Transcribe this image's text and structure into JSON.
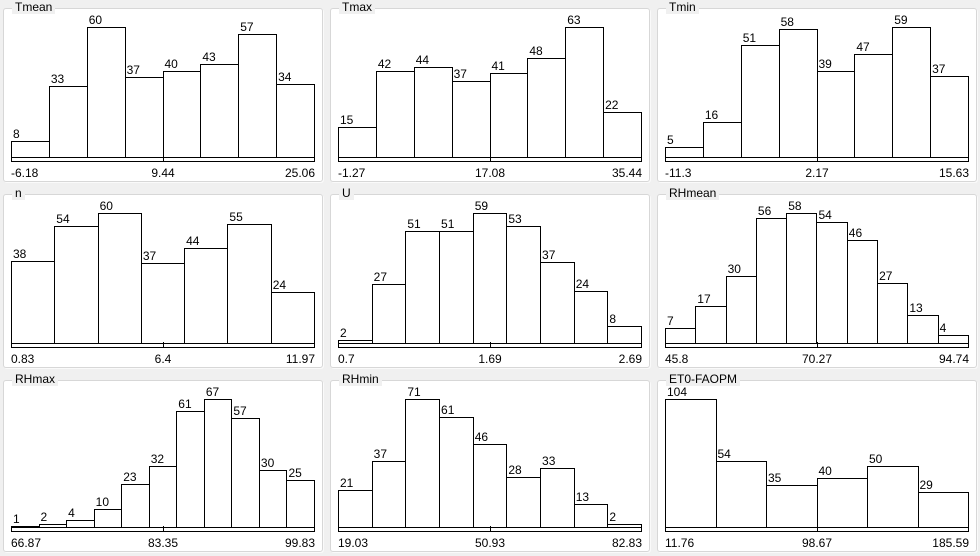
{
  "window": {
    "background": "#f0f0f0"
  },
  "style": {
    "panel_background": "#ffffff",
    "panel_border": "#d7d7d7",
    "bar_fill": "#ffffff",
    "bar_stroke": "#000000",
    "text_color": "#000000"
  },
  "chart_data": [
    {
      "type": "bar",
      "title": "Tmean",
      "values": [
        8,
        33,
        60,
        37,
        40,
        43,
        57,
        34
      ],
      "bins": 8,
      "x_ticks": [
        "-6.18",
        "9.44",
        "25.06"
      ],
      "x_range": [
        -6.18,
        25.06
      ],
      "ymax": 60
    },
    {
      "type": "bar",
      "title": "Tmax",
      "values": [
        15,
        42,
        44,
        37,
        41,
        48,
        63,
        22
      ],
      "bins": 8,
      "x_ticks": [
        "-1.27",
        "17.08",
        "35.44"
      ],
      "x_range": [
        -1.27,
        35.44
      ],
      "ymax": 63
    },
    {
      "type": "bar",
      "title": "Tmin",
      "values": [
        5,
        16,
        51,
        58,
        39,
        47,
        59,
        37
      ],
      "bins": 8,
      "x_ticks": [
        "-11.3",
        "2.17",
        "15.63"
      ],
      "x_range": [
        -11.3,
        15.63
      ],
      "ymax": 59
    },
    {
      "type": "bar",
      "title": "n",
      "values": [
        38,
        54,
        60,
        37,
        44,
        55,
        24
      ],
      "bins": 7,
      "x_ticks": [
        "0.83",
        "6.4",
        "11.97"
      ],
      "x_range": [
        0.83,
        11.97
      ],
      "ymax": 60
    },
    {
      "type": "bar",
      "title": "U",
      "values": [
        2,
        27,
        51,
        51,
        59,
        53,
        37,
        24,
        8
      ],
      "bins": 9,
      "x_ticks": [
        "0.7",
        "1.69",
        "2.69"
      ],
      "x_range": [
        0.7,
        2.69
      ],
      "ymax": 59
    },
    {
      "type": "bar",
      "title": "RHmean",
      "values": [
        7,
        17,
        30,
        56,
        58,
        54,
        46,
        27,
        13,
        4
      ],
      "bins": 10,
      "x_ticks": [
        "45.8",
        "70.27",
        "94.74"
      ],
      "x_range": [
        45.8,
        94.74
      ],
      "ymax": 58
    },
    {
      "type": "bar",
      "title": "RHmax",
      "values": [
        1,
        2,
        4,
        10,
        23,
        32,
        61,
        67,
        57,
        30,
        25
      ],
      "bins": 11,
      "x_ticks": [
        "66.87",
        "83.35",
        "99.83"
      ],
      "x_range": [
        66.87,
        99.83
      ],
      "ymax": 67
    },
    {
      "type": "bar",
      "title": "RHmin",
      "values": [
        21,
        37,
        71,
        61,
        46,
        28,
        33,
        13,
        2
      ],
      "bins": 9,
      "x_ticks": [
        "19.03",
        "50.93",
        "82.83"
      ],
      "x_range": [
        19.03,
        82.83
      ],
      "ymax": 71
    },
    {
      "type": "bar",
      "title": "ET0-FAOPM",
      "values": [
        104,
        54,
        35,
        40,
        50,
        29
      ],
      "bins": 6,
      "x_ticks": [
        "11.76",
        "98.67",
        "185.59"
      ],
      "x_range": [
        11.76,
        185.59
      ],
      "ymax": 104
    }
  ]
}
